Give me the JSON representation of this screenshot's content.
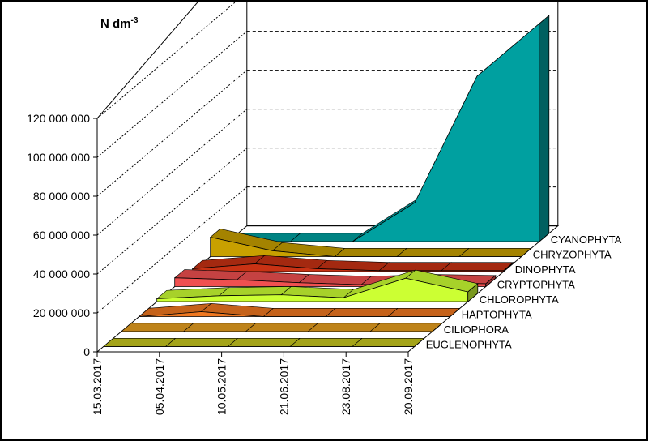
{
  "chart_data": {
    "type": "area",
    "unit_label": "N dm",
    "unit_exponent": "-3",
    "x": [
      "15.03.2017",
      "05.04.2017",
      "10.05.2017",
      "21.06.2017",
      "23.08.2017",
      "20.09.2017"
    ],
    "y_ticks": [
      "0",
      "20 000 000",
      "40 000 000",
      "60 000 000",
      "80 000 000",
      "100 000 000",
      "120 000 000"
    ],
    "ylim": [
      0,
      120000000
    ],
    "grid": true,
    "series": [
      {
        "name": "EUGLENOPHYTA",
        "color": "#c8c81e",
        "values": [
          0,
          0,
          0,
          0,
          0,
          0
        ]
      },
      {
        "name": "CILIOPHORA",
        "color": "#e8a020",
        "values": [
          0,
          0,
          0,
          0,
          0,
          0
        ]
      },
      {
        "name": "HAPTOPHYTA",
        "color": "#f07820",
        "values": [
          0,
          2500000,
          0,
          0,
          0,
          0
        ]
      },
      {
        "name": "CHLOROPHYTA",
        "color": "#ccff33",
        "values": [
          1500000,
          3000000,
          3500000,
          2000000,
          12000000,
          5000000
        ]
      },
      {
        "name": "CRYPTOPHYTA",
        "color": "#f05050",
        "values": [
          4500000,
          3500000,
          2000000,
          1000000,
          2000000,
          1500000
        ]
      },
      {
        "name": "DINOPHYTA",
        "color": "#c83214",
        "values": [
          1500000,
          4000000,
          1500000,
          500000,
          500000,
          500000
        ]
      },
      {
        "name": "CHRYZOPHYTA",
        "color": "#c8a000",
        "values": [
          10000000,
          3000000,
          0,
          0,
          0,
          0
        ]
      },
      {
        "name": "CYANOPHYTA",
        "color": "#00a0a0",
        "values": [
          0,
          0,
          0,
          20000000,
          85000000,
          112000000
        ]
      }
    ]
  }
}
